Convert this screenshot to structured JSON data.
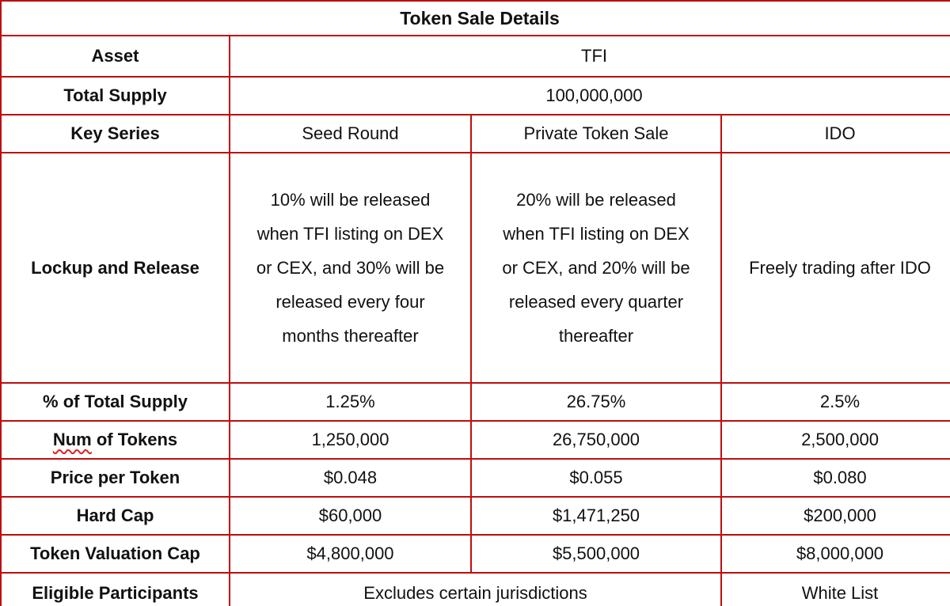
{
  "colors": {
    "accent": "#c00d0d",
    "squiggle": "#e02020",
    "text": "#111111",
    "background": "#ffffff"
  },
  "table": {
    "title": "Token Sale Details",
    "asset": {
      "label": "Asset",
      "value": "TFI"
    },
    "total_supply": {
      "label": "Total Supply",
      "value": "100,000,000"
    },
    "key_series": {
      "label": "Key Series",
      "columns": [
        "Seed Round",
        "Private Token Sale",
        "IDO"
      ]
    },
    "lockup_and_release": {
      "label": "Lockup and Release",
      "seed": "10% will be released\nwhen TFI listing on DEX\nor CEX, and 30% will be\nreleased every four\nmonths thereafter",
      "private": "20% will be released\nwhen TFI listing on DEX\nor CEX, and 20% will be\nreleased every quarter\nthereafter",
      "ido": "Freely trading after IDO"
    },
    "pct_of_total_supply": {
      "label": "% of Total Supply",
      "seed": "1.25%",
      "private": "26.75%",
      "ido": "2.5%"
    },
    "num_of_tokens": {
      "label_word_misspelled": "Num",
      "label_rest": " of Tokens",
      "seed": "1,250,000",
      "private": "26,750,000",
      "ido": "2,500,000"
    },
    "price_per_token": {
      "label": "Price per Token",
      "seed": "$0.048",
      "private": "$0.055",
      "ido": "$0.080"
    },
    "hard_cap": {
      "label": "Hard Cap",
      "seed": "$60,000",
      "private": "$1,471,250",
      "ido": "$200,000"
    },
    "token_valuation_cap": {
      "label": "Token Valuation Cap",
      "seed": "$4,800,000",
      "private": "$5,500,000",
      "ido": "$8,000,000"
    },
    "eligible_participants": {
      "label": "Eligible Participants",
      "seed_and_private": "Excludes certain jurisdictions",
      "ido": "White List"
    }
  }
}
